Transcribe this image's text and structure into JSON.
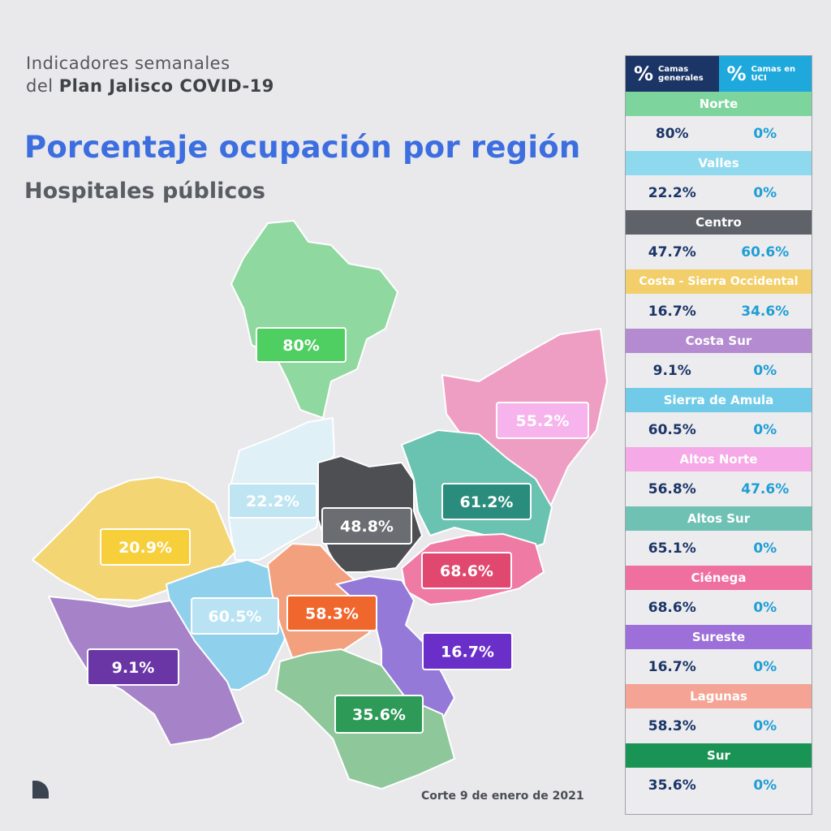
{
  "header": {
    "line1": "Indicadores semanales",
    "line2_prefix": "del ",
    "line2_bold": "Plan Jalisco COVID-19"
  },
  "title": "Porcentaje ocupación por región",
  "subtitle": "Hospitales públicos",
  "footer": "Corte 9 de enero de 2021",
  "table": {
    "col_general_symbol": "%",
    "col_general_label": "Camas generales",
    "col_uci_symbol": "%",
    "col_uci_label": "Camas en UCI",
    "rows": [
      {
        "region": "Norte",
        "general": "80%",
        "uci": "0%",
        "color": "#7dd49c"
      },
      {
        "region": "Valles",
        "general": "22.2%",
        "uci": "0%",
        "color": "#8fd9ee"
      },
      {
        "region": "Centro",
        "general": "47.7%",
        "uci": "60.6%",
        "color": "#5f6268"
      },
      {
        "region": "Costa - Sierra Occidental",
        "general": "16.7%",
        "uci": "34.6%",
        "color": "#f2cf6b"
      },
      {
        "region": "Costa Sur",
        "general": "9.1%",
        "uci": "0%",
        "color": "#b48bd0"
      },
      {
        "region": "Sierra de Amula",
        "general": "60.5%",
        "uci": "0%",
        "color": "#71cbe8"
      },
      {
        "region": "Altos Norte",
        "general": "56.8%",
        "uci": "47.6%",
        "color": "#f5a9e6"
      },
      {
        "region": "Altos Sur",
        "general": "65.1%",
        "uci": "0%",
        "color": "#6fc1b4"
      },
      {
        "region": "Ciénega",
        "general": "68.6%",
        "uci": "0%",
        "color": "#ef6f9f"
      },
      {
        "region": "Sureste",
        "general": "16.7%",
        "uci": "0%",
        "color": "#9d6fd9"
      },
      {
        "region": "Lagunas",
        "general": "58.3%",
        "uci": "0%",
        "color": "#f4a394"
      },
      {
        "region": "Sur",
        "general": "35.6%",
        "uci": "0%",
        "color": "#1a9455"
      }
    ]
  },
  "chart_data": {
    "type": "map",
    "title": "Porcentaje ocupación por región",
    "subtitle": "Hospitales públicos",
    "regions": [
      {
        "label": "80%",
        "value": 80,
        "fill": "#8fd8a0",
        "badge": "#4fcf62"
      },
      {
        "label": "55.2%",
        "value": 55.2,
        "fill": "#ef9ec3",
        "badge": "#f7b3ec"
      },
      {
        "label": "22.2%",
        "value": 22.2,
        "fill": "#dff0f7",
        "badge": "#bfe4f2"
      },
      {
        "label": "48.8%",
        "value": 48.8,
        "fill": "#4d4f53",
        "badge": "#6a6d72"
      },
      {
        "label": "61.2%",
        "value": 61.2,
        "fill": "#6ac2b0",
        "badge": "#2a8c7c"
      },
      {
        "label": "20.9%",
        "value": 20.9,
        "fill": "#f4d574",
        "badge": "#f7cf3a"
      },
      {
        "label": "68.6%",
        "value": 68.6,
        "fill": "#ef7aa3",
        "badge": "#e0486f"
      },
      {
        "label": "60.5%",
        "value": 60.5,
        "fill": "#8fd0ec",
        "badge": "#b9e3f3"
      },
      {
        "label": "58.3%",
        "value": 58.3,
        "fill": "#f3a07f",
        "badge": "#f0672d"
      },
      {
        "label": "9.1%",
        "value": 9.1,
        "fill": "#a683c8",
        "badge": "#6a36a6"
      },
      {
        "label": "16.7%",
        "value": 16.7,
        "fill": "#9479d8",
        "badge": "#6a2fc9"
      },
      {
        "label": "35.6%",
        "value": 35.6,
        "fill": "#8ec79a",
        "badge": "#2e9a58"
      }
    ]
  }
}
